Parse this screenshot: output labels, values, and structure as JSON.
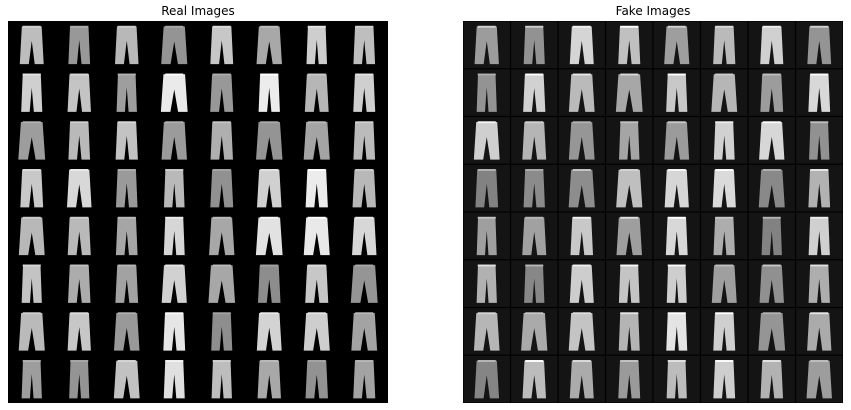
{
  "panels": [
    {
      "id": "real",
      "title": "Real Images"
    },
    {
      "id": "fake",
      "title": "Fake Images"
    }
  ],
  "grid": {
    "rows": 8,
    "cols": 8
  },
  "colors": {
    "background": "#ffffff",
    "grid_bg": "#000000",
    "item": "#d9d9d9",
    "fake_tile": "#141414"
  }
}
